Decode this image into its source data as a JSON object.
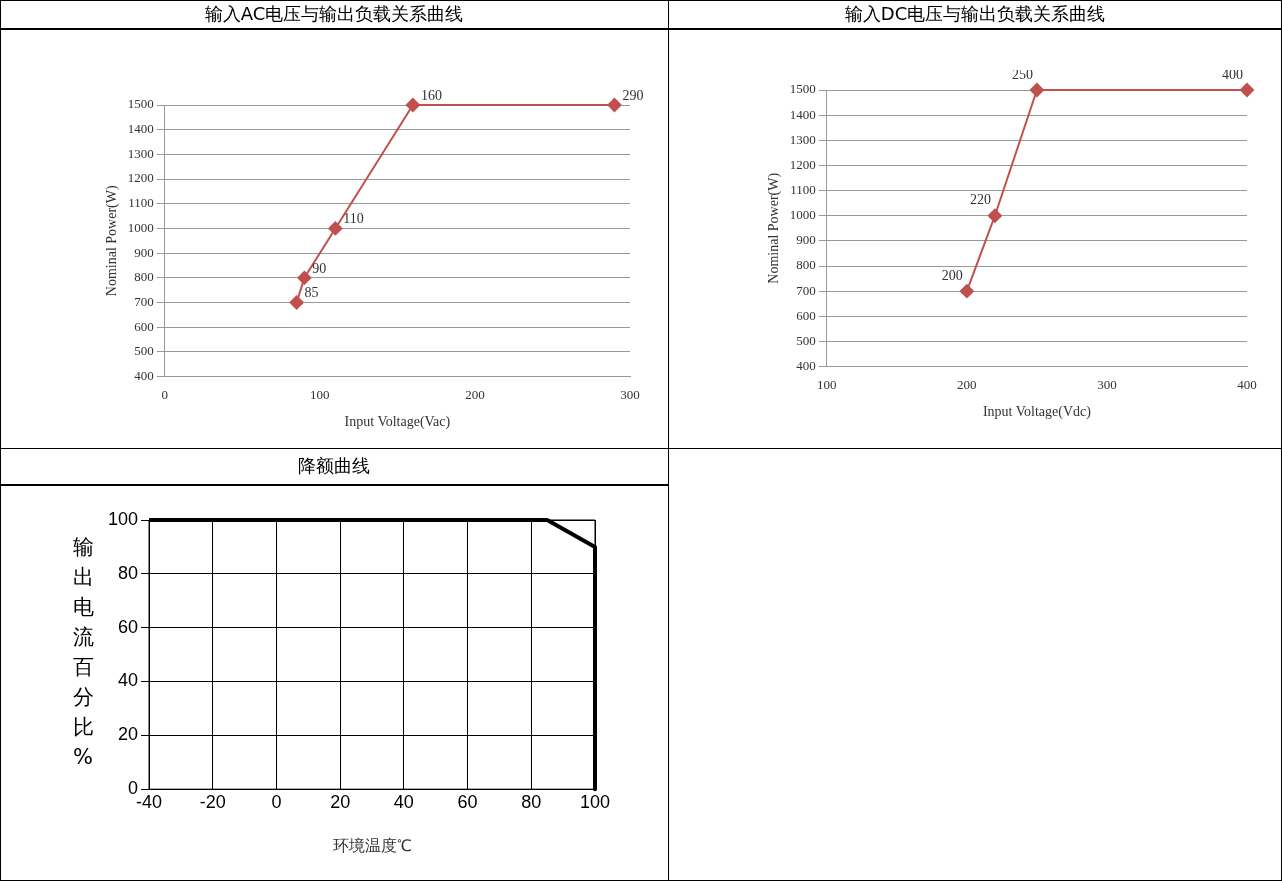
{
  "chart_data": [
    {
      "type": "line",
      "title": "输入AC电压与输出负载关系曲线",
      "xlabel": "Input Voltage(Vac)",
      "ylabel": "Nominal Power(W)",
      "x": [
        85,
        90,
        110,
        160,
        290
      ],
      "values": [
        700,
        800,
        1000,
        1500,
        1500
      ],
      "annotations": [
        {
          "text": "85",
          "x": 85,
          "y": 700
        },
        {
          "text": "90",
          "x": 90,
          "y": 800
        },
        {
          "text": "110",
          "x": 110,
          "y": 1000
        },
        {
          "text": "160",
          "x": 160,
          "y": 1500
        },
        {
          "text": "290",
          "x": 290,
          "y": 1500
        }
      ],
      "color": "#c0504d",
      "marker": "diamond",
      "xlim": [
        0,
        300
      ],
      "xticks": [
        0,
        100,
        200,
        300
      ],
      "ylim": [
        400,
        1500
      ],
      "yticks": [
        400,
        500,
        600,
        700,
        800,
        900,
        1000,
        1100,
        1200,
        1300,
        1400,
        1500
      ],
      "grid": "y"
    },
    {
      "type": "line",
      "title": "输入DC电压与输出负载关系曲线",
      "xlabel": "Input Voltage(Vdc)",
      "ylabel": "Nominal Power(W)",
      "x": [
        200,
        220,
        250,
        400
      ],
      "values": [
        700,
        1000,
        1500,
        1500
      ],
      "annotations": [
        {
          "text": "200",
          "x": 200,
          "y": 700
        },
        {
          "text": "220",
          "x": 220,
          "y": 1000
        },
        {
          "text": "250",
          "x": 250,
          "y": 1500
        },
        {
          "text": "400",
          "x": 400,
          "y": 1500
        }
      ],
      "color": "#c0504d",
      "marker": "diamond",
      "xlim": [
        100,
        400
      ],
      "xticks": [
        100,
        200,
        300,
        400
      ],
      "ylim": [
        400,
        1500
      ],
      "yticks": [
        400,
        500,
        600,
        700,
        800,
        900,
        1000,
        1100,
        1200,
        1300,
        1400,
        1500
      ],
      "grid": "y"
    },
    {
      "type": "line",
      "title": "降额曲线",
      "xlabel": "环境温度℃",
      "ylabel": "输出电流百分比%",
      "x": [
        -40,
        85,
        100,
        100
      ],
      "values": [
        100,
        100,
        90,
        0
      ],
      "color": "#000000",
      "marker": "none",
      "xlim": [
        -40,
        100
      ],
      "xticks": [
        -40,
        -20,
        0,
        20,
        40,
        60,
        80,
        100
      ],
      "ylim": [
        0,
        100
      ],
      "yticks": [
        0,
        20,
        40,
        60,
        80,
        100
      ],
      "grid": true
    }
  ]
}
